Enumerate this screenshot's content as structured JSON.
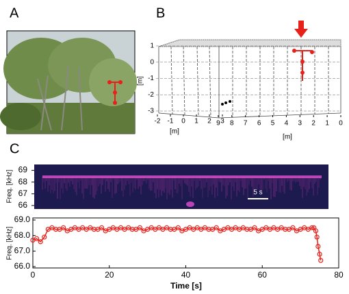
{
  "panel_labels": [
    "A",
    "B",
    "C"
  ],
  "panel_b": {
    "zlim": [
      -3,
      1
    ],
    "zticks": [
      1,
      0,
      -1,
      -2,
      -3
    ],
    "z_unit": "[m]",
    "xticks_left": [
      -2,
      -1,
      0,
      1,
      2,
      3
    ],
    "xticks_right": [
      9,
      8,
      7,
      6,
      5,
      4,
      3,
      2,
      1,
      0
    ],
    "x_unit_left": "[m]",
    "x_unit_right": "[m]"
  },
  "spectrogram": {
    "ylabel": "Freq. [kHz]",
    "ylim": [
      65.7,
      69.5
    ],
    "yticks": [
      69,
      68,
      67,
      66
    ],
    "scale_bar": "5 s"
  },
  "chart_data": {
    "type": "line",
    "xlabel": "Time [s]",
    "ylabel": "Freq. [kHz]",
    "color": "#e8201a",
    "xlim": [
      0,
      80
    ],
    "xticks": [
      0,
      20,
      40,
      60,
      80
    ],
    "ylim": [
      66,
      69
    ],
    "yticks": [
      {
        "value": 66,
        "label": "66.0"
      },
      {
        "value": 67,
        "label": "67.0"
      },
      {
        "value": 68,
        "label": "68.0"
      },
      {
        "value": 69,
        "label": "69.0"
      }
    ],
    "x": [
      0,
      1,
      2,
      3,
      4,
      5,
      6,
      7,
      8,
      9,
      10,
      11,
      12,
      13,
      14,
      15,
      16,
      17,
      18,
      19,
      20,
      21,
      22,
      23,
      24,
      25,
      26,
      27,
      28,
      29,
      30,
      31,
      32,
      33,
      34,
      35,
      36,
      37,
      38,
      39,
      40,
      41,
      42,
      43,
      44,
      45,
      46,
      47,
      48,
      49,
      50,
      51,
      52,
      53,
      54,
      55,
      56,
      57,
      58,
      59,
      60,
      61,
      62,
      63,
      64,
      65,
      66,
      67,
      68,
      69,
      70,
      71,
      72,
      73,
      73.5,
      74,
      74.3,
      74.6,
      75,
      75.3
    ],
    "values": [
      67.7,
      67.8,
      67.6,
      67.9,
      68.4,
      68.5,
      68.4,
      68.4,
      68.5,
      68.3,
      68.4,
      68.5,
      68.4,
      68.5,
      68.4,
      68.5,
      68.4,
      68.4,
      68.5,
      68.3,
      68.4,
      68.5,
      68.4,
      68.5,
      68.4,
      68.5,
      68.4,
      68.4,
      68.5,
      68.3,
      68.4,
      68.5,
      68.4,
      68.5,
      68.4,
      68.5,
      68.4,
      68.4,
      68.5,
      68.3,
      68.4,
      68.5,
      68.4,
      68.5,
      68.4,
      68.5,
      68.4,
      68.4,
      68.5,
      68.3,
      68.4,
      68.5,
      68.4,
      68.5,
      68.4,
      68.5,
      68.4,
      68.4,
      68.5,
      68.3,
      68.4,
      68.5,
      68.4,
      68.5,
      68.4,
      68.5,
      68.4,
      68.4,
      68.5,
      68.3,
      68.4,
      68.5,
      68.4,
      68.5,
      68.5,
      68.3,
      67.9,
      67.3,
      66.8,
      66.4
    ]
  }
}
